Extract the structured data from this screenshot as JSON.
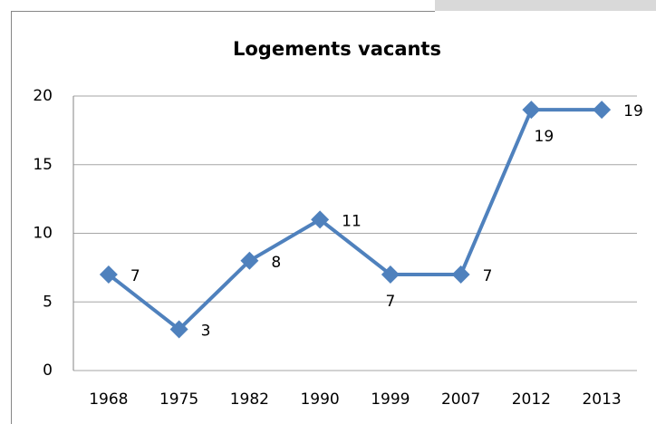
{
  "chart_data": {
    "type": "line",
    "title": "Logements vacants",
    "categories": [
      "1968",
      "1975",
      "1982",
      "1990",
      "1999",
      "2007",
      "2012",
      "2013"
    ],
    "series": [
      {
        "name": "Logements vacants",
        "color": "#4f81bd",
        "values": [
          7,
          3,
          8,
          11,
          7,
          7,
          19,
          19
        ]
      }
    ],
    "ylim": [
      0,
      20
    ],
    "yticks": [
      0,
      5,
      10,
      15,
      20
    ],
    "grid": true
  }
}
